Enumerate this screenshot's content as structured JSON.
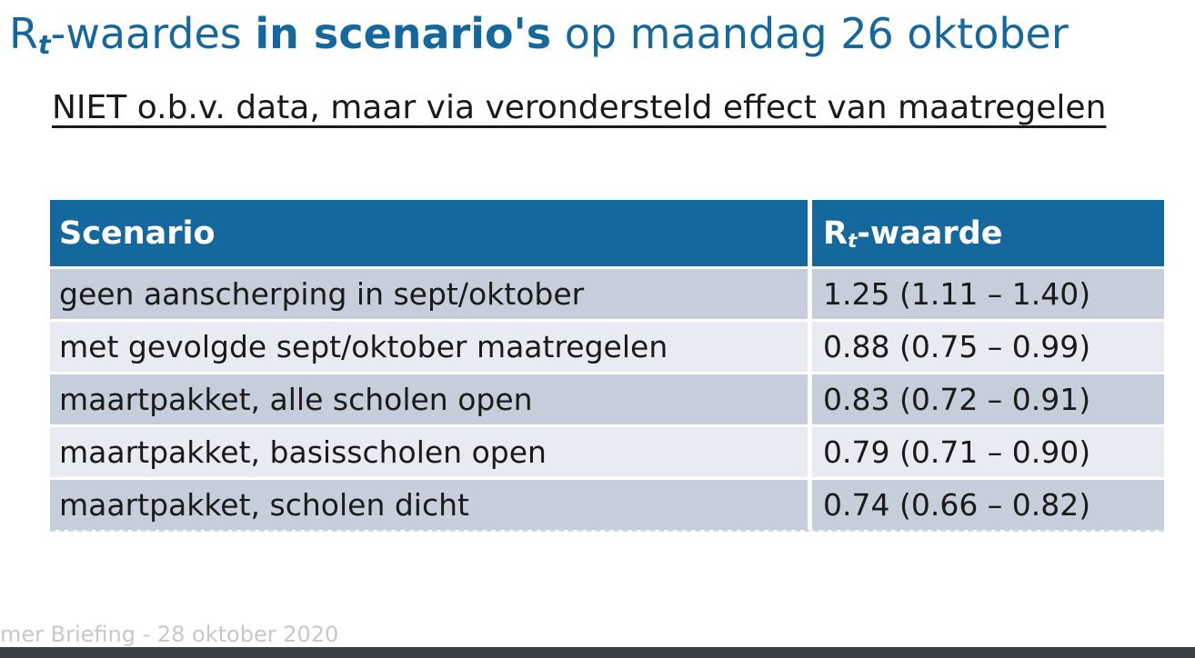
{
  "colors": {
    "accent_blue": "#15689E",
    "header_bg": "#15689E",
    "header_text": "#FFFFFF",
    "row_dark": "#C5CEDA",
    "row_light": "#E9EBF2",
    "text_black": "#1A1A1A",
    "footer_text": "#C8C8C8",
    "footer_bar": "#3B3E43"
  },
  "title": {
    "r": "R",
    "sub": "t",
    "mid": "-waardes ",
    "bold": "in scenario's",
    "tail": " op maandag 26 oktober"
  },
  "subtitle": "NIET o.b.v. data, maar via verondersteld effect van maatregelen",
  "table": {
    "header": {
      "scenario": "Scenario",
      "rt_r": "R",
      "rt_sub": "t",
      "rt_rest": "-waarde"
    },
    "rows": [
      {
        "scenario": "geen aanscherping in sept/oktober",
        "rt_waarde": "1.25 (1.11 – 1.40)"
      },
      {
        "scenario": "met gevolgde sept/oktober maatregelen",
        "rt_waarde": "0.88 (0.75 – 0.99)"
      },
      {
        "scenario": "maartpakket, alle scholen open",
        "rt_waarde": "0.83 (0.72 – 0.91)"
      },
      {
        "scenario": "maartpakket, basisscholen open",
        "rt_waarde": "0.79 (0.71 – 0.90)"
      },
      {
        "scenario": "maartpakket, scholen dicht",
        "rt_waarde": "0.74 (0.66 – 0.82)"
      }
    ]
  },
  "footer": {
    "text": "mer Briefing - 28 oktober 2020"
  }
}
